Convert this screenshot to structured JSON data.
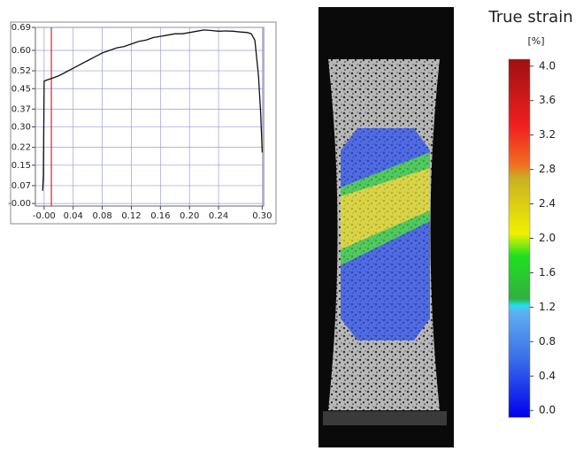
{
  "chart_data": [
    {
      "type": "line",
      "color": "#111111",
      "grid": true,
      "grid_color": "#9a9ae0",
      "xlim": [
        -0.012,
        0.302
      ],
      "ylim": [
        -0.01,
        0.69
      ],
      "xticks": [
        {
          "value": 0,
          "label": "-0.00"
        },
        {
          "value": 0.04,
          "label": "0.04"
        },
        {
          "value": 0.08,
          "label": "0.08"
        },
        {
          "value": 0.12,
          "label": "0.12"
        },
        {
          "value": 0.16,
          "label": "0.16"
        },
        {
          "value": 0.2,
          "label": "0.20"
        },
        {
          "value": 0.24,
          "label": "0.24"
        },
        {
          "value": 0.3,
          "label": "0.30"
        }
      ],
      "yticks": [
        {
          "value": 0,
          "label": "-0.00"
        },
        {
          "value": 0.07,
          "label": "0.07"
        },
        {
          "value": 0.15,
          "label": "0.15"
        },
        {
          "value": 0.22,
          "label": "0.22"
        },
        {
          "value": 0.3,
          "label": "0.30"
        },
        {
          "value": 0.37,
          "label": "0.37"
        },
        {
          "value": 0.45,
          "label": "0.45"
        },
        {
          "value": 0.52,
          "label": "0.52"
        },
        {
          "value": 0.6,
          "label": "0.60"
        },
        {
          "value": 0.69,
          "label": "0.69"
        }
      ],
      "vline": 0.01,
      "vline_color": "#e02020",
      "x": [
        -0.002,
        -0.001,
        0,
        0.01,
        0.02,
        0.03,
        0.04,
        0.05,
        0.06,
        0.07,
        0.08,
        0.09,
        0.1,
        0.11,
        0.12,
        0.13,
        0.14,
        0.15,
        0.16,
        0.17,
        0.18,
        0.19,
        0.2,
        0.21,
        0.22,
        0.23,
        0.24,
        0.25,
        0.26,
        0.27,
        0.28,
        0.285,
        0.29,
        0.295,
        0.298,
        0.3
      ],
      "values": [
        0.05,
        0.11,
        0.48,
        0.49,
        0.5,
        0.515,
        0.53,
        0.545,
        0.56,
        0.575,
        0.59,
        0.6,
        0.61,
        0.615,
        0.625,
        0.635,
        0.64,
        0.65,
        0.655,
        0.66,
        0.665,
        0.665,
        0.67,
        0.675,
        0.68,
        0.678,
        0.675,
        0.676,
        0.675,
        0.672,
        0.67,
        0.665,
        0.64,
        0.5,
        0.35,
        0.2
      ]
    },
    {
      "type": "colorbar",
      "title": "True strain",
      "unit": "[%]",
      "zlim": [
        -0.08,
        4.08
      ],
      "ticks": [
        {
          "value": 0,
          "label": "0.0"
        },
        {
          "value": 0.4,
          "label": "0.4"
        },
        {
          "value": 0.8,
          "label": "0.8"
        },
        {
          "value": 1.2,
          "label": "1.2"
        },
        {
          "value": 1.6,
          "label": "1.6"
        },
        {
          "value": 2.0,
          "label": "2.0"
        },
        {
          "value": 2.4,
          "label": "2.4"
        },
        {
          "value": 2.8,
          "label": "2.8"
        },
        {
          "value": 3.2,
          "label": "3.2"
        },
        {
          "value": 3.6,
          "label": "3.6"
        },
        {
          "value": 4.0,
          "label": "4.0"
        }
      ],
      "color_stops": [
        {
          "value": -0.08,
          "color": "#0000ee"
        },
        {
          "value": 0.6,
          "color": "#3a6ee8"
        },
        {
          "value": 1.15,
          "color": "#60b0f0"
        },
        {
          "value": 1.22,
          "color": "#20e0f0"
        },
        {
          "value": 1.3,
          "color": "#30b040"
        },
        {
          "value": 1.8,
          "color": "#20e020"
        },
        {
          "value": 2.05,
          "color": "#f0f000"
        },
        {
          "value": 2.7,
          "color": "#c8b020"
        },
        {
          "value": 2.85,
          "color": "#f07020"
        },
        {
          "value": 3.3,
          "color": "#f02020"
        },
        {
          "value": 4.08,
          "color": "#a01010"
        }
      ]
    }
  ]
}
